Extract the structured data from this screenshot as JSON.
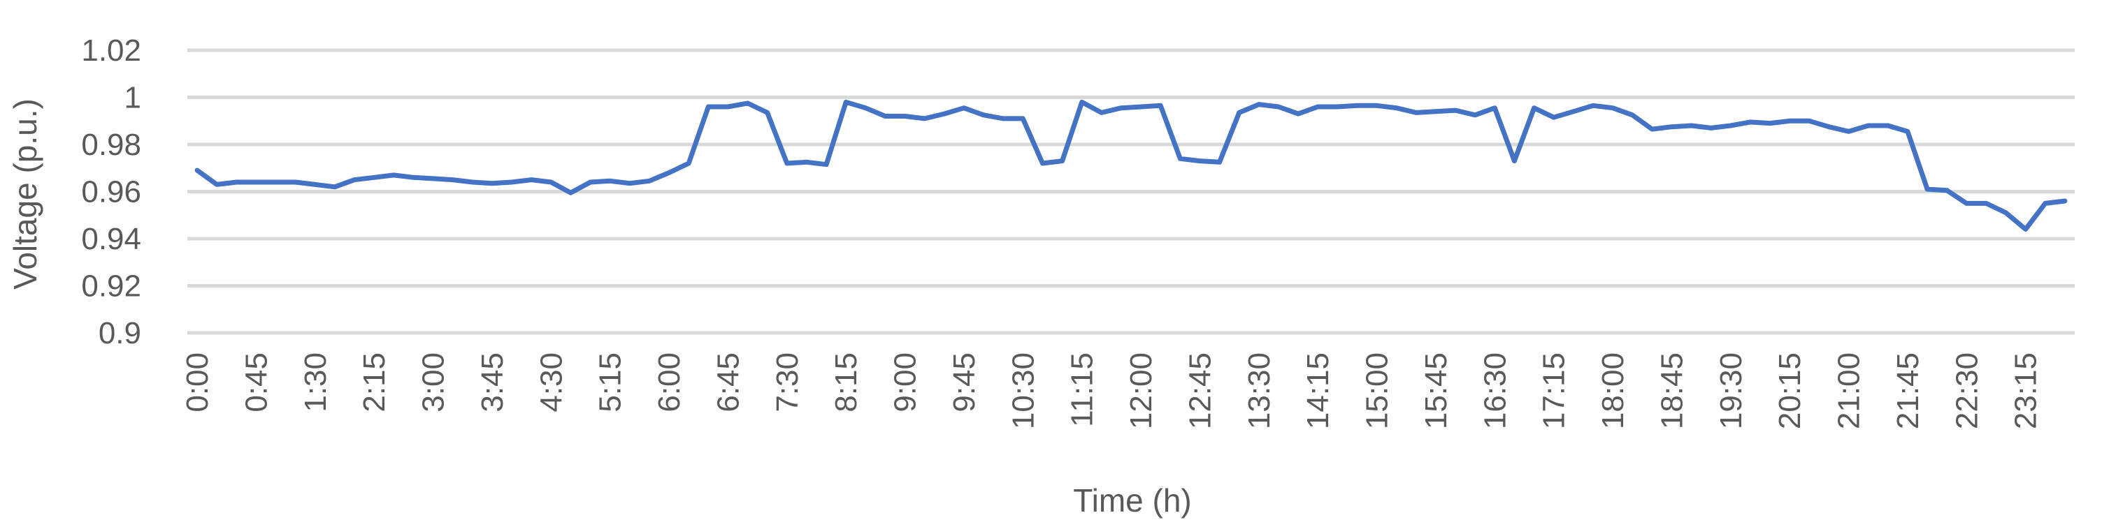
{
  "chart_data": {
    "type": "line",
    "title": "",
    "xlabel": "Time (h)",
    "ylabel": "Voltage (p.u.)",
    "ylim": [
      0.9,
      1.02
    ],
    "yticks": [
      "0.9",
      "0.92",
      "0.94",
      "0.96",
      "0.98",
      "1",
      "1.02"
    ],
    "ytick_values": [
      0.9,
      0.92,
      0.94,
      0.96,
      0.98,
      1.0,
      1.02
    ],
    "xtick_labels": [
      "0:00",
      "0:45",
      "1:30",
      "2:15",
      "3:00",
      "3:45",
      "4:30",
      "5:15",
      "6:00",
      "6:45",
      "7:30",
      "8:15",
      "9:00",
      "9:45",
      "10:30",
      "11:15",
      "12:00",
      "12:45",
      "13:30",
      "14:15",
      "15:00",
      "15:45",
      "16:30",
      "17:15",
      "18:00",
      "18:45",
      "19:30",
      "20:15",
      "21:00",
      "21:45",
      "22:30",
      "23:15"
    ],
    "grid": true,
    "legend": "none",
    "line_color": "#4472c4",
    "x": [
      "0:00",
      "0:15",
      "0:30",
      "0:45",
      "1:00",
      "1:15",
      "1:30",
      "1:45",
      "2:00",
      "2:15",
      "2:30",
      "2:45",
      "3:00",
      "3:15",
      "3:30",
      "3:45",
      "4:00",
      "4:15",
      "4:30",
      "4:45",
      "5:00",
      "5:15",
      "5:30",
      "5:45",
      "6:00",
      "6:15",
      "6:30",
      "6:45",
      "7:00",
      "7:15",
      "7:30",
      "7:45",
      "8:00",
      "8:15",
      "8:30",
      "8:45",
      "9:00",
      "9:15",
      "9:30",
      "9:45",
      "10:00",
      "10:15",
      "10:30",
      "10:45",
      "11:00",
      "11:15",
      "11:30",
      "11:45",
      "12:00",
      "12:15",
      "12:30",
      "12:45",
      "13:00",
      "13:15",
      "13:30",
      "13:45",
      "14:00",
      "14:15",
      "14:30",
      "14:45",
      "15:00",
      "15:15",
      "15:30",
      "15:45",
      "16:00",
      "16:15",
      "16:30",
      "16:45",
      "17:00",
      "17:15",
      "17:30",
      "17:45",
      "18:00",
      "18:15",
      "18:30",
      "18:45",
      "19:00",
      "19:15",
      "19:30",
      "19:45",
      "20:00",
      "20:15",
      "20:30",
      "20:45",
      "21:00",
      "21:15",
      "21:30",
      "21:45",
      "22:00",
      "22:15",
      "22:30",
      "22:45",
      "23:00",
      "23:15",
      "23:30",
      "23:45"
    ],
    "values": [
      0.969,
      0.963,
      0.964,
      0.964,
      0.964,
      0.964,
      0.963,
      0.962,
      0.965,
      0.966,
      0.967,
      0.966,
      0.9655,
      0.965,
      0.964,
      0.9635,
      0.964,
      0.965,
      0.964,
      0.9595,
      0.964,
      0.9645,
      0.9635,
      0.9645,
      0.968,
      0.972,
      0.996,
      0.996,
      0.9975,
      0.9935,
      0.972,
      0.9725,
      0.9715,
      0.998,
      0.9955,
      0.992,
      0.992,
      0.991,
      0.993,
      0.9955,
      0.9925,
      0.991,
      0.991,
      0.972,
      0.973,
      0.998,
      0.9935,
      0.9955,
      0.996,
      0.9965,
      0.974,
      0.973,
      0.9725,
      0.9935,
      0.997,
      0.996,
      0.993,
      0.996,
      0.996,
      0.9965,
      0.9965,
      0.9955,
      0.9935,
      0.994,
      0.9945,
      0.9925,
      0.9955,
      0.973,
      0.9955,
      0.9915,
      0.994,
      0.9965,
      0.9955,
      0.9925,
      0.9865,
      0.9875,
      0.988,
      0.987,
      0.988,
      0.9895,
      0.989,
      0.99,
      0.99,
      0.9875,
      0.9855,
      0.988,
      0.988,
      0.9855,
      0.961,
      0.9605,
      0.955,
      0.955,
      0.951,
      0.944,
      0.955,
      0.956
    ]
  }
}
